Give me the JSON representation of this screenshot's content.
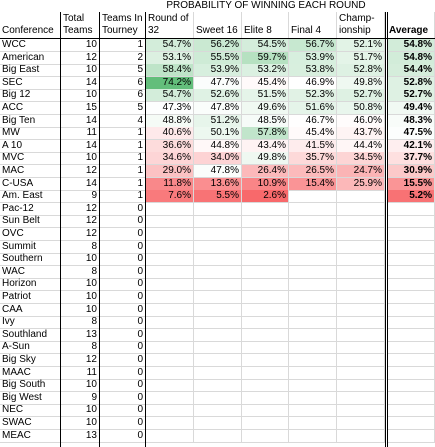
{
  "title": "PROBABILITY OF WINNING EACH ROUND",
  "headers": {
    "conference": "Conference",
    "teams": "Total\nTeams",
    "tourney": "Teams In\nTourney",
    "r32": "Round of\n32",
    "s16": "Sweet 16",
    "e8": "Elite 8",
    "f4": "Final 4",
    "champ": "Champ-\nionship",
    "avg": "Average"
  },
  "colors": {
    "green_strong": "#63be7b",
    "white": "#ffffff",
    "red_strong": "#f8696b",
    "grid": "#d9d9d9"
  },
  "rows": [
    {
      "conf": "WCC",
      "teams": "10",
      "tourney": "1",
      "p": [
        "54.7%",
        "56.2%",
        "54.5%",
        "56.7%",
        "52.1%"
      ],
      "avg": "54.8%"
    },
    {
      "conf": "American",
      "teams": "12",
      "tourney": "2",
      "p": [
        "53.1%",
        "55.5%",
        "59.7%",
        "53.9%",
        "51.7%"
      ],
      "avg": "54.8%"
    },
    {
      "conf": "Big East",
      "teams": "10",
      "tourney": "5",
      "p": [
        "58.4%",
        "53.9%",
        "53.2%",
        "53.8%",
        "52.8%"
      ],
      "avg": "54.4%"
    },
    {
      "conf": "SEC",
      "teams": "14",
      "tourney": "6",
      "p": [
        "74.2%",
        "47.7%",
        "45.4%",
        "46.9%",
        "49.8%"
      ],
      "avg": "52.8%"
    },
    {
      "conf": "Big 12",
      "teams": "10",
      "tourney": "6",
      "p": [
        "54.7%",
        "52.6%",
        "51.5%",
        "52.3%",
        "52.7%"
      ],
      "avg": "52.7%"
    },
    {
      "conf": "ACC",
      "teams": "15",
      "tourney": "5",
      "p": [
        "47.3%",
        "47.8%",
        "49.6%",
        "51.6%",
        "50.8%"
      ],
      "avg": "49.4%"
    },
    {
      "conf": "Big Ten",
      "teams": "14",
      "tourney": "4",
      "p": [
        "48.8%",
        "51.2%",
        "48.5%",
        "46.7%",
        "46.0%"
      ],
      "avg": "48.3%"
    },
    {
      "conf": "MW",
      "teams": "11",
      "tourney": "1",
      "p": [
        "40.6%",
        "50.1%",
        "57.8%",
        "45.4%",
        "43.7%"
      ],
      "avg": "47.5%"
    },
    {
      "conf": "A 10",
      "teams": "14",
      "tourney": "1",
      "p": [
        "36.6%",
        "44.8%",
        "43.4%",
        "41.5%",
        "44.4%"
      ],
      "avg": "42.1%"
    },
    {
      "conf": "MVC",
      "teams": "10",
      "tourney": "1",
      "p": [
        "34.6%",
        "34.0%",
        "49.8%",
        "35.7%",
        "34.5%"
      ],
      "avg": "37.7%"
    },
    {
      "conf": "MAC",
      "teams": "12",
      "tourney": "1",
      "p": [
        "29.0%",
        "47.8%",
        "26.4%",
        "26.5%",
        "24.7%"
      ],
      "avg": "30.9%"
    },
    {
      "conf": "C-USA",
      "teams": "14",
      "tourney": "1",
      "p": [
        "11.8%",
        "13.6%",
        "10.9%",
        "15.4%",
        "25.9%"
      ],
      "avg": "15.5%"
    },
    {
      "conf": "Am. East",
      "teams": "9",
      "tourney": "1",
      "p": [
        "7.6%",
        "5.5%",
        "2.6%",
        "",
        ""
      ],
      "avg": "5.2%"
    },
    {
      "conf": "Pac-12",
      "teams": "12",
      "tourney": "0",
      "p": [
        "",
        "",
        "",
        "",
        ""
      ],
      "avg": ""
    },
    {
      "conf": "Sun Belt",
      "teams": "12",
      "tourney": "0",
      "p": [
        "",
        "",
        "",
        "",
        ""
      ],
      "avg": ""
    },
    {
      "conf": "OVC",
      "teams": "12",
      "tourney": "0",
      "p": [
        "",
        "",
        "",
        "",
        ""
      ],
      "avg": ""
    },
    {
      "conf": "Summit",
      "teams": "8",
      "tourney": "0",
      "p": [
        "",
        "",
        "",
        "",
        ""
      ],
      "avg": ""
    },
    {
      "conf": "Southern",
      "teams": "10",
      "tourney": "0",
      "p": [
        "",
        "",
        "",
        "",
        ""
      ],
      "avg": ""
    },
    {
      "conf": "WAC",
      "teams": "8",
      "tourney": "0",
      "p": [
        "",
        "",
        "",
        "",
        ""
      ],
      "avg": ""
    },
    {
      "conf": "Horizon",
      "teams": "10",
      "tourney": "0",
      "p": [
        "",
        "",
        "",
        "",
        ""
      ],
      "avg": ""
    },
    {
      "conf": "Patriot",
      "teams": "10",
      "tourney": "0",
      "p": [
        "",
        "",
        "",
        "",
        ""
      ],
      "avg": ""
    },
    {
      "conf": "CAA",
      "teams": "10",
      "tourney": "0",
      "p": [
        "",
        "",
        "",
        "",
        ""
      ],
      "avg": ""
    },
    {
      "conf": "Ivy",
      "teams": "8",
      "tourney": "0",
      "p": [
        "",
        "",
        "",
        "",
        ""
      ],
      "avg": ""
    },
    {
      "conf": "Southland",
      "teams": "13",
      "tourney": "0",
      "p": [
        "",
        "",
        "",
        "",
        ""
      ],
      "avg": ""
    },
    {
      "conf": "A-Sun",
      "teams": "8",
      "tourney": "0",
      "p": [
        "",
        "",
        "",
        "",
        ""
      ],
      "avg": ""
    },
    {
      "conf": "Big Sky",
      "teams": "12",
      "tourney": "0",
      "p": [
        "",
        "",
        "",
        "",
        ""
      ],
      "avg": ""
    },
    {
      "conf": "MAAC",
      "teams": "11",
      "tourney": "0",
      "p": [
        "",
        "",
        "",
        "",
        ""
      ],
      "avg": ""
    },
    {
      "conf": "Big South",
      "teams": "10",
      "tourney": "0",
      "p": [
        "",
        "",
        "",
        "",
        ""
      ],
      "avg": ""
    },
    {
      "conf": "Big West",
      "teams": "9",
      "tourney": "0",
      "p": [
        "",
        "",
        "",
        "",
        ""
      ],
      "avg": ""
    },
    {
      "conf": "NEC",
      "teams": "10",
      "tourney": "0",
      "p": [
        "",
        "",
        "",
        "",
        ""
      ],
      "avg": ""
    },
    {
      "conf": "SWAC",
      "teams": "10",
      "tourney": "0",
      "p": [
        "",
        "",
        "",
        "",
        ""
      ],
      "avg": ""
    },
    {
      "conf": "MEAC",
      "teams": "13",
      "tourney": "0",
      "p": [
        "",
        "",
        "",
        "",
        ""
      ],
      "avg": ""
    }
  ]
}
